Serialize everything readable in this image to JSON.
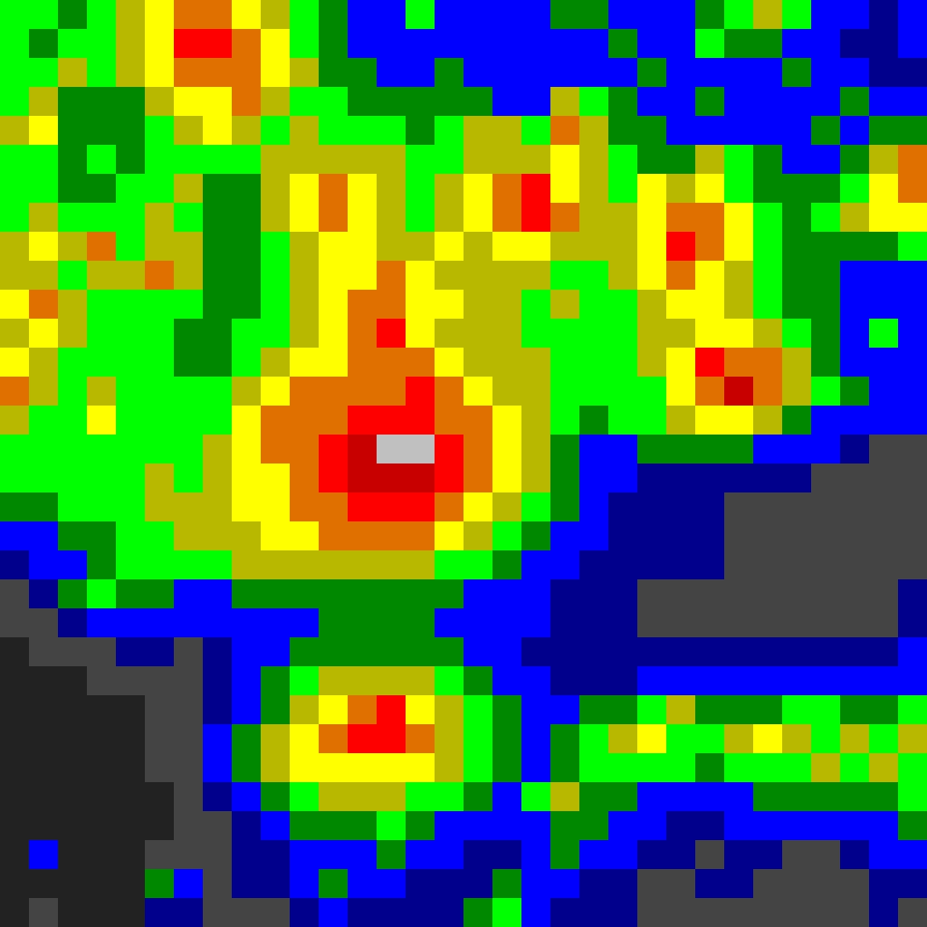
{
  "chart_data": {
    "type": "heatmap",
    "tick_labels": false,
    "colors": [
      "#222222",
      "#444444",
      "#00008c",
      "#0000ff",
      "#008800",
      "#00ff00",
      "#b8b800",
      "#ffff00",
      "#e07000",
      "#ff0000",
      "#c80000",
      "#c0c0c0"
    ],
    "cells": [
      [
        5,
        5,
        4,
        5,
        6,
        7,
        8,
        8,
        7,
        6,
        5,
        4,
        3,
        3,
        5,
        3,
        3,
        3,
        3,
        4,
        4,
        3,
        3,
        3,
        4,
        5,
        6,
        5,
        3,
        3,
        2,
        3
      ],
      [
        5,
        4,
        5,
        5,
        6,
        7,
        9,
        9,
        8,
        7,
        5,
        4,
        3,
        3,
        3,
        3,
        3,
        3,
        3,
        3,
        3,
        4,
        3,
        3,
        5,
        4,
        4,
        3,
        3,
        2,
        2,
        3
      ],
      [
        5,
        5,
        6,
        5,
        6,
        7,
        8,
        8,
        8,
        7,
        6,
        4,
        4,
        3,
        3,
        4,
        3,
        3,
        3,
        3,
        3,
        3,
        4,
        3,
        3,
        3,
        3,
        4,
        3,
        3,
        2,
        2
      ],
      [
        5,
        6,
        4,
        4,
        4,
        6,
        7,
        7,
        8,
        6,
        5,
        5,
        4,
        4,
        4,
        4,
        4,
        3,
        3,
        6,
        5,
        4,
        3,
        3,
        4,
        3,
        3,
        3,
        3,
        4,
        3,
        3
      ],
      [
        6,
        7,
        4,
        4,
        4,
        5,
        6,
        7,
        6,
        5,
        6,
        5,
        5,
        5,
        4,
        5,
        6,
        6,
        5,
        8,
        6,
        4,
        4,
        3,
        3,
        3,
        3,
        3,
        4,
        3,
        4,
        4
      ],
      [
        5,
        5,
        4,
        5,
        4,
        5,
        5,
        5,
        5,
        6,
        6,
        6,
        6,
        6,
        5,
        5,
        6,
        6,
        6,
        7,
        6,
        5,
        4,
        4,
        6,
        5,
        4,
        3,
        3,
        4,
        6,
        8
      ],
      [
        5,
        5,
        4,
        4,
        5,
        5,
        6,
        4,
        4,
        6,
        7,
        8,
        7,
        6,
        5,
        6,
        7,
        8,
        9,
        7,
        6,
        5,
        7,
        6,
        7,
        5,
        4,
        4,
        4,
        5,
        7,
        8
      ],
      [
        5,
        6,
        5,
        5,
        5,
        6,
        5,
        4,
        4,
        6,
        7,
        8,
        7,
        6,
        5,
        6,
        7,
        8,
        9,
        8,
        6,
        6,
        7,
        8,
        8,
        7,
        5,
        4,
        5,
        6,
        7,
        7
      ],
      [
        6,
        7,
        6,
        8,
        5,
        6,
        6,
        4,
        4,
        5,
        6,
        7,
        7,
        6,
        6,
        7,
        6,
        7,
        7,
        6,
        6,
        6,
        7,
        9,
        8,
        7,
        5,
        4,
        4,
        4,
        4,
        5
      ],
      [
        6,
        6,
        5,
        6,
        6,
        8,
        6,
        4,
        4,
        5,
        6,
        7,
        7,
        8,
        7,
        6,
        6,
        6,
        6,
        5,
        5,
        6,
        7,
        8,
        7,
        6,
        5,
        4,
        4,
        3,
        3,
        3
      ],
      [
        7,
        8,
        6,
        5,
        5,
        5,
        5,
        4,
        4,
        5,
        6,
        7,
        8,
        8,
        7,
        7,
        6,
        6,
        5,
        6,
        5,
        5,
        6,
        7,
        7,
        6,
        5,
        4,
        4,
        3,
        3,
        3
      ],
      [
        6,
        7,
        6,
        5,
        5,
        5,
        4,
        4,
        5,
        5,
        6,
        7,
        8,
        9,
        7,
        6,
        6,
        6,
        5,
        5,
        5,
        5,
        6,
        6,
        7,
        7,
        6,
        5,
        4,
        3,
        5,
        3
      ],
      [
        7,
        6,
        5,
        5,
        5,
        5,
        4,
        4,
        5,
        6,
        7,
        7,
        8,
        8,
        8,
        7,
        6,
        6,
        6,
        5,
        5,
        5,
        6,
        7,
        9,
        8,
        8,
        6,
        4,
        3,
        3,
        3
      ],
      [
        8,
        6,
        5,
        6,
        5,
        5,
        5,
        5,
        6,
        7,
        8,
        8,
        8,
        8,
        9,
        8,
        7,
        6,
        6,
        5,
        5,
        5,
        5,
        7,
        8,
        10,
        8,
        6,
        5,
        4,
        3,
        3
      ],
      [
        6,
        5,
        5,
        7,
        5,
        5,
        5,
        5,
        7,
        8,
        8,
        8,
        9,
        9,
        9,
        8,
        8,
        7,
        6,
        5,
        4,
        5,
        5,
        6,
        7,
        7,
        6,
        4,
        3,
        3,
        3,
        3
      ],
      [
        5,
        5,
        5,
        5,
        5,
        5,
        5,
        6,
        7,
        8,
        8,
        9,
        10,
        11,
        11,
        9,
        8,
        7,
        6,
        4,
        3,
        3,
        4,
        4,
        4,
        4,
        3,
        3,
        3,
        2,
        1,
        1
      ],
      [
        5,
        5,
        5,
        5,
        5,
        6,
        5,
        6,
        7,
        7,
        8,
        9,
        10,
        10,
        10,
        9,
        8,
        7,
        6,
        4,
        3,
        3,
        2,
        2,
        2,
        2,
        2,
        2,
        1,
        1,
        1,
        1
      ],
      [
        4,
        4,
        5,
        5,
        5,
        6,
        6,
        6,
        7,
        7,
        8,
        8,
        9,
        9,
        9,
        8,
        7,
        6,
        5,
        4,
        3,
        2,
        2,
        2,
        2,
        1,
        1,
        1,
        1,
        1,
        1,
        1
      ],
      [
        3,
        3,
        4,
        4,
        5,
        5,
        6,
        6,
        6,
        7,
        7,
        8,
        8,
        8,
        8,
        7,
        6,
        5,
        4,
        3,
        3,
        2,
        2,
        2,
        2,
        1,
        1,
        1,
        1,
        1,
        1,
        1
      ],
      [
        2,
        3,
        3,
        4,
        5,
        5,
        5,
        5,
        6,
        6,
        6,
        6,
        6,
        6,
        6,
        5,
        5,
        4,
        3,
        3,
        2,
        2,
        2,
        2,
        2,
        1,
        1,
        1,
        1,
        1,
        1,
        1
      ],
      [
        1,
        2,
        4,
        5,
        4,
        4,
        3,
        3,
        4,
        4,
        4,
        4,
        4,
        4,
        4,
        4,
        3,
        3,
        3,
        2,
        2,
        2,
        1,
        1,
        1,
        1,
        1,
        1,
        1,
        1,
        1,
        2
      ],
      [
        1,
        1,
        2,
        3,
        3,
        3,
        3,
        3,
        3,
        3,
        3,
        4,
        4,
        4,
        4,
        3,
        3,
        3,
        3,
        2,
        2,
        2,
        1,
        1,
        1,
        1,
        1,
        1,
        1,
        1,
        1,
        2
      ],
      [
        0,
        1,
        1,
        1,
        2,
        2,
        1,
        2,
        3,
        3,
        4,
        4,
        4,
        4,
        4,
        4,
        3,
        3,
        2,
        2,
        2,
        2,
        2,
        2,
        2,
        2,
        2,
        2,
        2,
        2,
        2,
        3
      ],
      [
        0,
        0,
        0,
        1,
        1,
        1,
        1,
        2,
        3,
        4,
        5,
        6,
        6,
        6,
        6,
        5,
        4,
        3,
        3,
        2,
        2,
        2,
        3,
        3,
        3,
        3,
        3,
        3,
        3,
        3,
        3,
        3
      ],
      [
        0,
        0,
        0,
        0,
        0,
        1,
        1,
        2,
        3,
        4,
        6,
        7,
        8,
        9,
        7,
        6,
        5,
        4,
        3,
        3,
        4,
        4,
        5,
        6,
        4,
        4,
        4,
        5,
        5,
        4,
        4,
        5
      ],
      [
        0,
        0,
        0,
        0,
        0,
        1,
        1,
        3,
        4,
        6,
        7,
        8,
        9,
        9,
        8,
        6,
        5,
        4,
        3,
        4,
        5,
        6,
        7,
        5,
        5,
        6,
        7,
        6,
        5,
        6,
        5,
        6
      ],
      [
        0,
        0,
        0,
        0,
        0,
        1,
        1,
        3,
        4,
        6,
        7,
        7,
        7,
        7,
        7,
        6,
        5,
        4,
        3,
        4,
        5,
        5,
        5,
        5,
        4,
        5,
        5,
        5,
        6,
        5,
        6,
        5
      ],
      [
        0,
        0,
        0,
        0,
        0,
        0,
        1,
        2,
        3,
        4,
        5,
        6,
        6,
        6,
        5,
        5,
        4,
        3,
        5,
        6,
        4,
        4,
        3,
        3,
        3,
        3,
        4,
        4,
        4,
        4,
        4,
        5
      ],
      [
        0,
        0,
        0,
        0,
        0,
        0,
        1,
        1,
        2,
        3,
        4,
        4,
        4,
        5,
        4,
        3,
        3,
        3,
        3,
        4,
        4,
        3,
        3,
        2,
        2,
        3,
        3,
        3,
        3,
        3,
        3,
        4
      ],
      [
        0,
        3,
        0,
        0,
        0,
        1,
        1,
        1,
        2,
        2,
        3,
        3,
        3,
        4,
        3,
        3,
        2,
        2,
        3,
        4,
        3,
        3,
        2,
        2,
        1,
        2,
        2,
        1,
        1,
        2,
        3,
        3
      ],
      [
        0,
        0,
        0,
        0,
        0,
        4,
        3,
        1,
        2,
        2,
        3,
        4,
        3,
        3,
        2,
        2,
        2,
        4,
        3,
        3,
        2,
        2,
        1,
        1,
        2,
        2,
        1,
        1,
        1,
        1,
        2,
        2
      ],
      [
        0,
        1,
        0,
        0,
        0,
        2,
        2,
        1,
        1,
        1,
        2,
        3,
        2,
        2,
        2,
        2,
        4,
        5,
        3,
        2,
        2,
        2,
        1,
        1,
        1,
        1,
        1,
        1,
        1,
        1,
        2,
        1
      ]
    ]
  }
}
